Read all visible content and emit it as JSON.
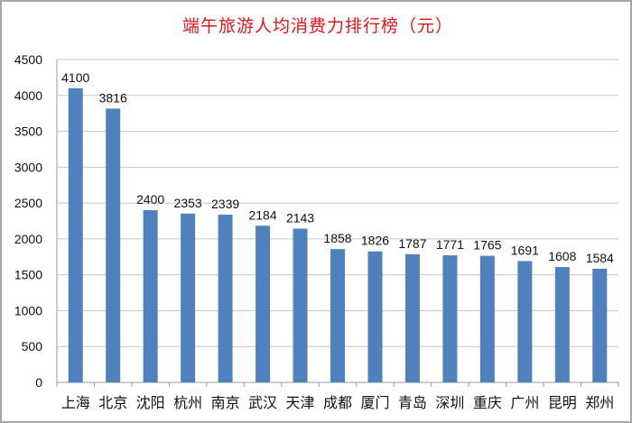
{
  "chart_data": {
    "type": "bar",
    "title": "端午旅游人均消费力排行榜（元）",
    "xlabel": "",
    "ylabel": "",
    "ylim": [
      0,
      4500
    ],
    "yticks": [
      0,
      500,
      1000,
      1500,
      2000,
      2500,
      3000,
      3500,
      4000,
      4500
    ],
    "grid": true,
    "categories": [
      "上海",
      "北京",
      "沈阳",
      "杭州",
      "南京",
      "武汉",
      "天津",
      "成都",
      "厦门",
      "青岛",
      "深圳",
      "重庆",
      "广州",
      "昆明",
      "郑州"
    ],
    "values": [
      4100,
      3816,
      2400,
      2353,
      2339,
      2184,
      2143,
      1858,
      1826,
      1787,
      1771,
      1765,
      1691,
      1608,
      1584
    ],
    "bar_color": "#4f81bd",
    "title_color": "#e3141c"
  }
}
